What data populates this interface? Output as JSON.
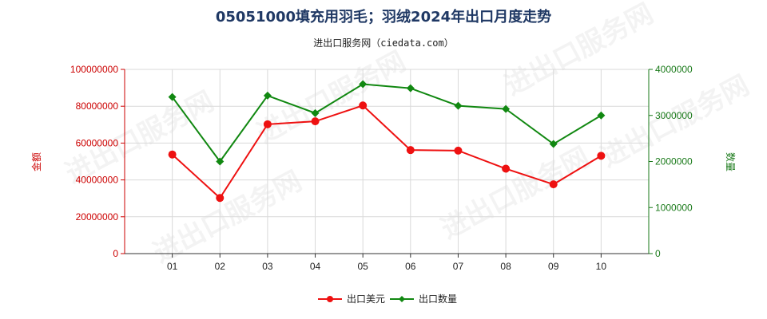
{
  "chart_data": {
    "type": "line",
    "title": "05051000填充用羽毛；羽绒2024年出口月度走势",
    "subtitle": "进出口服务网（ciedata.com）",
    "categories": [
      "01",
      "02",
      "03",
      "04",
      "05",
      "06",
      "07",
      "08",
      "09",
      "10"
    ],
    "y_left": {
      "label": "金额",
      "ylim": [
        0,
        100000000
      ],
      "ticks": [
        "0",
        "20000000",
        "40000000",
        "60000000",
        "80000000",
        "100000000"
      ],
      "color": "#cc0000"
    },
    "y_right": {
      "label": "数量",
      "ylim": [
        0,
        4000000
      ],
      "ticks": [
        "0",
        "1000000",
        "2000000",
        "3000000",
        "4000000"
      ],
      "color": "#1a7a1a"
    },
    "grid": true,
    "legend_position": "bottom-center",
    "series": [
      {
        "name": "出口美元",
        "axis": "left",
        "color": "#ee1111",
        "values": [
          53800000,
          30200000,
          70200000,
          71800000,
          80400000,
          56200000,
          55900000,
          46100000,
          37600000,
          53100000
        ]
      },
      {
        "name": "出口数量",
        "axis": "right",
        "color": "#118811",
        "values": [
          3400000,
          2000000,
          3430000,
          3050000,
          3680000,
          3590000,
          3210000,
          3140000,
          2380000,
          3000000
        ]
      }
    ],
    "watermark": "进出口服务网"
  }
}
